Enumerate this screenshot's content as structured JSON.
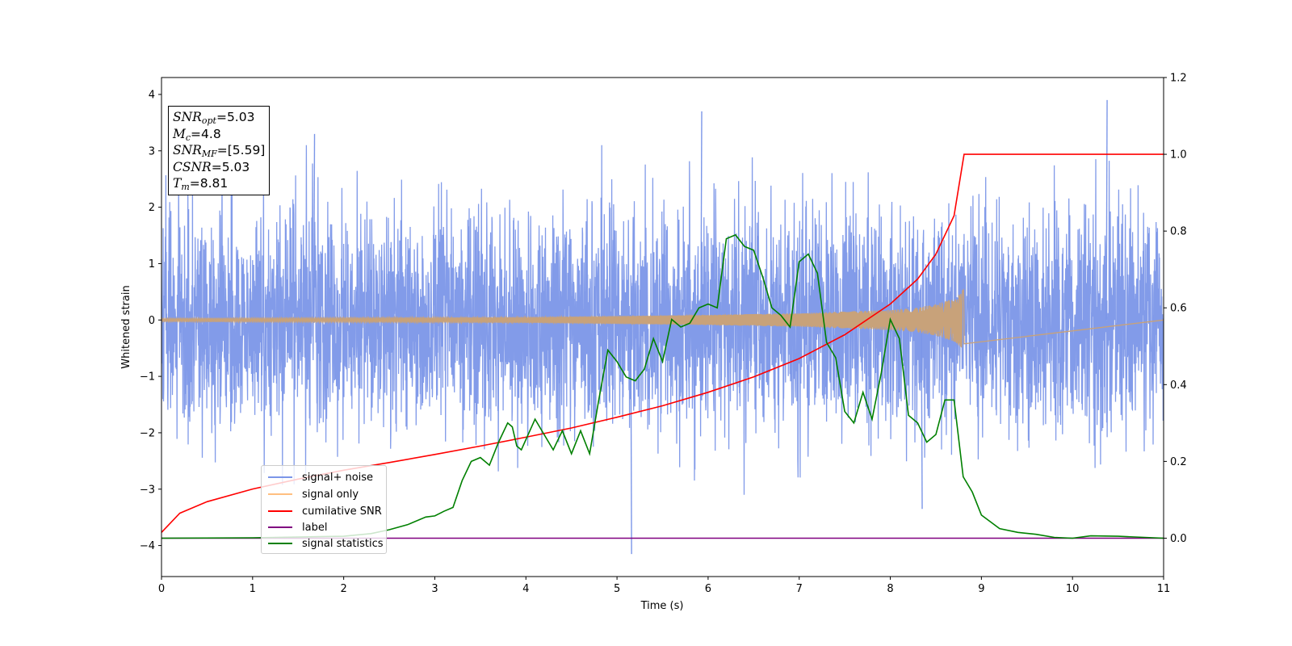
{
  "chart_data": {
    "type": "line",
    "xlabel": "Time (s)",
    "ylabel": "Whitened strain",
    "xlim": [
      0,
      11
    ],
    "ylim": [
      -4.55,
      4.3
    ],
    "y2lim": [
      -0.1,
      1.2
    ],
    "x_ticks": [
      "0",
      "1",
      "2",
      "3",
      "4",
      "5",
      "6",
      "7",
      "8",
      "9",
      "10",
      "11"
    ],
    "y_ticks": [
      "−4",
      "−3",
      "−2",
      "−1",
      "0",
      "1",
      "2",
      "3",
      "4"
    ],
    "y_tick_values": [
      -4,
      -3,
      -2,
      -1,
      0,
      1,
      2,
      3,
      4
    ],
    "y2_ticks": [
      "0.0",
      "0.2",
      "0.4",
      "0.6",
      "0.8",
      "1.0",
      "1.2"
    ],
    "y2_tick_values": [
      0.0,
      0.2,
      0.4,
      0.6,
      0.8,
      1.0,
      1.2
    ],
    "grid": false,
    "legend_position": "lower-left",
    "annotation": {
      "snr_opt": "=5.03",
      "mc": "=4.8",
      "snr_mf": "=[5.59]",
      "csnr": "=5.03",
      "tm": "=8.81"
    },
    "series": [
      {
        "name": "signal+ noise",
        "color": "#7b96e8",
        "axis": "left",
        "description_values": {
          "typical_upper_envelope": [
            1.5,
            2.6
          ],
          "typical_lower_envelope": [
            -1.5,
            -2.6
          ],
          "peaks": [
            {
              "x": 1.68,
              "y": 3.3
            },
            {
              "x": 5.93,
              "y": 3.7
            },
            {
              "x": 10.38,
              "y": 3.9
            },
            {
              "x": 5.16,
              "y": -4.15
            },
            {
              "x": 8.35,
              "y": -3.35
            }
          ]
        }
      },
      {
        "name": "signal only",
        "color": "#c8a27a",
        "axis": "left",
        "envelope": {
          "x": [
            0,
            2,
            4,
            5,
            6,
            7,
            7.5,
            8,
            8.3,
            8.5,
            8.7,
            8.81
          ],
          "amplitude": [
            0.03,
            0.04,
            0.05,
            0.07,
            0.09,
            0.12,
            0.15,
            0.18,
            0.22,
            0.28,
            0.38,
            0.55
          ]
        },
        "end_time": 8.81
      },
      {
        "name": "cumilative SNR",
        "color": "#ff0000",
        "axis": "right",
        "x": [
          0,
          0.2,
          0.5,
          1,
          1.5,
          2,
          2.5,
          3,
          3.5,
          4,
          4.5,
          5,
          5.5,
          6,
          6.5,
          7,
          7.5,
          8,
          8.3,
          8.5,
          8.7,
          8.81,
          11
        ],
        "y": [
          0.015,
          0.065,
          0.095,
          0.128,
          0.154,
          0.177,
          0.197,
          0.218,
          0.24,
          0.263,
          0.287,
          0.315,
          0.345,
          0.38,
          0.42,
          0.468,
          0.53,
          0.61,
          0.675,
          0.74,
          0.84,
          1.0,
          1.0
        ]
      },
      {
        "name": "label",
        "color": "#800080",
        "axis": "right",
        "x": [
          0,
          11
        ],
        "y": [
          0.0,
          0.0
        ]
      },
      {
        "name": "signal statistics",
        "color": "#008000",
        "axis": "right",
        "x": [
          0,
          1,
          2,
          2.3,
          2.5,
          2.7,
          2.9,
          3.0,
          3.1,
          3.2,
          3.3,
          3.4,
          3.5,
          3.6,
          3.7,
          3.8,
          3.85,
          3.9,
          3.95,
          4.1,
          4.15,
          4.3,
          4.4,
          4.5,
          4.6,
          4.7,
          4.8,
          4.9,
          5.0,
          5.1,
          5.2,
          5.3,
          5.4,
          5.5,
          5.6,
          5.7,
          5.8,
          5.9,
          6.0,
          6.1,
          6.2,
          6.3,
          6.4,
          6.5,
          6.6,
          6.7,
          6.8,
          6.9,
          7.0,
          7.1,
          7.2,
          7.3,
          7.4,
          7.5,
          7.6,
          7.7,
          7.8,
          7.9,
          8.0,
          8.1,
          8.2,
          8.3,
          8.4,
          8.5,
          8.6,
          8.7,
          8.8,
          8.9,
          9.0,
          9.2,
          9.4,
          9.6,
          9.8,
          10.0,
          10.2,
          10.5,
          11.0
        ],
        "y": [
          0.0,
          0.001,
          0.005,
          0.012,
          0.022,
          0.035,
          0.055,
          0.058,
          0.07,
          0.08,
          0.15,
          0.2,
          0.21,
          0.19,
          0.25,
          0.3,
          0.29,
          0.24,
          0.23,
          0.31,
          0.29,
          0.23,
          0.28,
          0.22,
          0.28,
          0.22,
          0.36,
          0.49,
          0.46,
          0.42,
          0.41,
          0.44,
          0.52,
          0.46,
          0.57,
          0.55,
          0.56,
          0.6,
          0.61,
          0.6,
          0.78,
          0.79,
          0.76,
          0.75,
          0.68,
          0.6,
          0.58,
          0.55,
          0.72,
          0.74,
          0.69,
          0.51,
          0.47,
          0.33,
          0.3,
          0.38,
          0.31,
          0.43,
          0.57,
          0.52,
          0.32,
          0.3,
          0.25,
          0.27,
          0.36,
          0.36,
          0.16,
          0.12,
          0.06,
          0.025,
          0.015,
          0.01,
          0.002,
          0.0,
          0.006,
          0.005,
          0.0
        ]
      }
    ]
  }
}
